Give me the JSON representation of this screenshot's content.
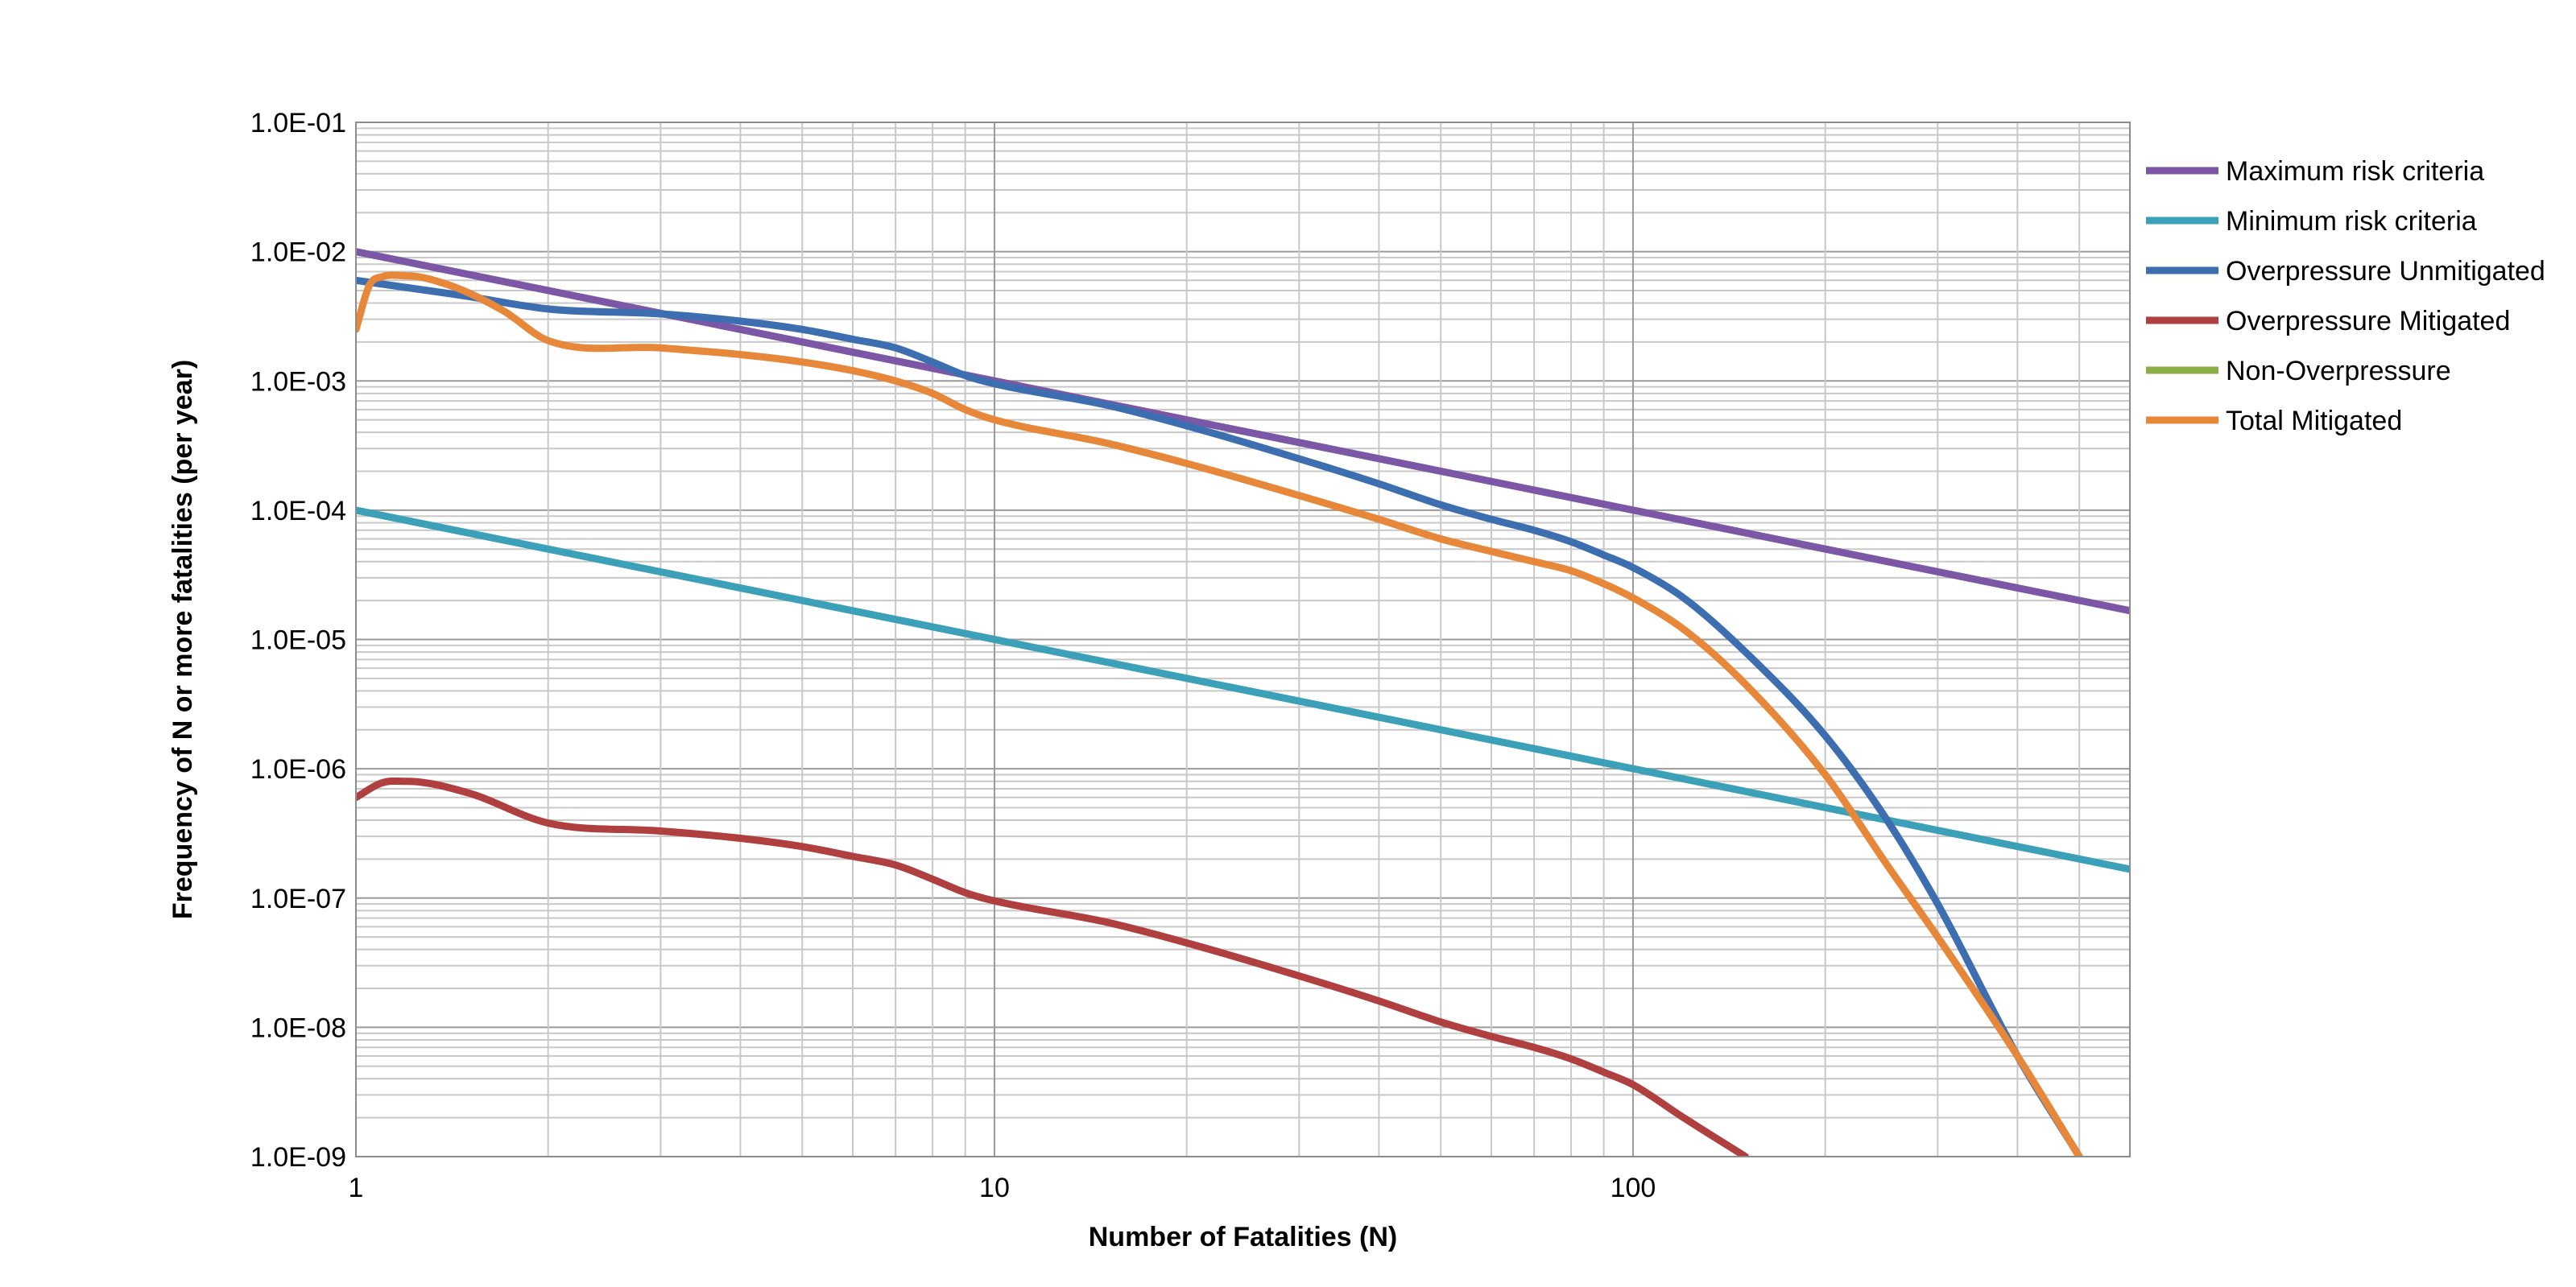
{
  "chart_data": {
    "type": "line",
    "title": "",
    "xlabel": "Number of Fatalities (N)",
    "ylabel": "Frequency of N or more  fatalities (per year)",
    "xscale": "log",
    "yscale": "log",
    "xlim": [
      1,
      600
    ],
    "ylim": [
      1e-09,
      0.1
    ],
    "x_ticks": [
      "1",
      "10",
      "100"
    ],
    "y_ticks": [
      "1.0E-09",
      "1.0E-08",
      "1.0E-07",
      "1.0E-06",
      "1.0E-05",
      "1.0E-04",
      "1.0E-03",
      "1.0E-02",
      "1.0E-01"
    ],
    "grid": true,
    "legend_position": "right",
    "series": [
      {
        "name": "Maximum risk criteria",
        "color": "#7B57A6",
        "x": [
          1,
          600
        ],
        "y": [
          0.01,
          1.67e-05
        ]
      },
      {
        "name": "Minimum risk criteria",
        "color": "#3CA1B8",
        "x": [
          1,
          600
        ],
        "y": [
          0.0001,
          1.67e-07
        ]
      },
      {
        "name": "Overpressure Unmitigated",
        "color": "#3D6FB0",
        "x": [
          1,
          1.5,
          2,
          3,
          4,
          5,
          6,
          7,
          8,
          9,
          10,
          15,
          20,
          30,
          40,
          50,
          60,
          70,
          80,
          90,
          100,
          120,
          150,
          200,
          250,
          300,
          400,
          500
        ],
        "y": [
          0.006,
          0.0045,
          0.0036,
          0.0033,
          0.0029,
          0.0025,
          0.0021,
          0.0018,
          0.0014,
          0.0011,
          0.00095,
          0.00065,
          0.00045,
          0.00025,
          0.00016,
          0.00011,
          8.5e-05,
          7e-05,
          5.7e-05,
          4.5e-05,
          3.6e-05,
          2.1e-05,
          8e-06,
          1.8e-06,
          4e-07,
          9e-08,
          6e-09,
          1e-09
        ]
      },
      {
        "name": "Overpressure Mitigated",
        "color": "#B03F3F",
        "x": [
          1,
          1.1,
          1.2,
          1.5,
          2,
          3,
          4,
          5,
          6,
          7,
          8,
          9,
          10,
          15,
          20,
          30,
          40,
          50,
          60,
          70,
          80,
          90,
          100,
          120,
          150
        ],
        "y": [
          6e-07,
          7.8e-07,
          8e-07,
          6.5e-07,
          3.8e-07,
          3.3e-07,
          2.9e-07,
          2.5e-07,
          2.1e-07,
          1.8e-07,
          1.4e-07,
          1.1e-07,
          9.5e-08,
          6.5e-08,
          4.5e-08,
          2.5e-08,
          1.6e-08,
          1.1e-08,
          8.5e-09,
          7e-09,
          5.7e-09,
          4.5e-09,
          3.6e-09,
          2e-09,
          1e-09
        ]
      },
      {
        "name": "Non-Overpressure",
        "color": "#8BAE46",
        "x": [],
        "y": []
      },
      {
        "name": "Total Mitigated",
        "color": "#E6873A",
        "x": [
          1,
          1.05,
          1.1,
          1.2,
          1.4,
          1.7,
          2,
          3,
          4,
          5,
          6,
          7,
          8,
          9,
          10,
          15,
          20,
          30,
          40,
          50,
          60,
          70,
          80,
          90,
          100,
          120,
          150,
          200,
          250,
          300,
          400,
          500
        ],
        "y": [
          0.0025,
          0.0055,
          0.0064,
          0.0065,
          0.0055,
          0.0035,
          0.00205,
          0.0018,
          0.0016,
          0.0014,
          0.0012,
          0.001,
          0.0008,
          0.0006,
          0.0005,
          0.00033,
          0.00023,
          0.00013,
          8.5e-05,
          6e-05,
          4.8e-05,
          4e-05,
          3.4e-05,
          2.7e-05,
          2.1e-05,
          1.2e-05,
          4.5e-06,
          9e-07,
          1.8e-07,
          5e-08,
          6e-09,
          1e-09
        ]
      }
    ]
  }
}
